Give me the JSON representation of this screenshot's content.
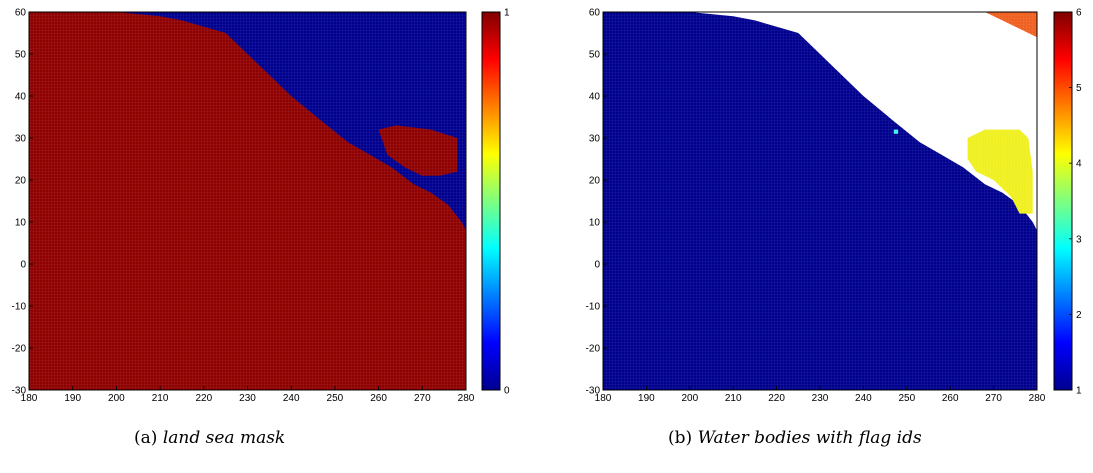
{
  "chart_data": [
    {
      "type": "heatmap",
      "title": "",
      "xlabel": "",
      "ylabel": "",
      "xlim": [
        180,
        280
      ],
      "ylim": [
        -30,
        60
      ],
      "xticks": [
        180,
        190,
        200,
        210,
        220,
        230,
        240,
        250,
        260,
        270,
        280
      ],
      "yticks": [
        -30,
        -20,
        -10,
        0,
        10,
        20,
        30,
        40,
        50,
        60
      ],
      "colorbar": {
        "range": [
          0,
          1
        ],
        "ticks": [
          0,
          1
        ],
        "colormap": "jet"
      },
      "legend_values": {
        "0": "#00008f",
        "1": "#8f0000"
      },
      "data_description": "binary mask; 1 (dark red) over most of the domain, 0 (dark blue) in the north-east quadrant",
      "region_0_boundary": [
        [
          200,
          60
        ],
        [
          210,
          59
        ],
        [
          215,
          58
        ],
        [
          225,
          55
        ],
        [
          230,
          50
        ],
        [
          235,
          45
        ],
        [
          240,
          40
        ],
        [
          247,
          34
        ],
        [
          253,
          29
        ],
        [
          258,
          26
        ],
        [
          263,
          23
        ],
        [
          268,
          19
        ],
        [
          272,
          17
        ],
        [
          276,
          14
        ],
        [
          279,
          10
        ],
        [
          280,
          8
        ],
        [
          280,
          60
        ]
      ],
      "region_1_inset": [
        [
          260,
          32
        ],
        [
          264,
          33
        ],
        [
          272,
          32
        ],
        [
          278,
          30
        ],
        [
          278,
          22
        ],
        [
          274,
          21
        ],
        [
          270,
          21
        ],
        [
          266,
          23
        ],
        [
          262,
          26
        ]
      ],
      "caption_tag": "(a)",
      "caption_text": "land sea mask"
    },
    {
      "type": "heatmap",
      "title": "",
      "xlabel": "",
      "ylabel": "",
      "xlim": [
        180,
        280
      ],
      "ylim": [
        -30,
        60
      ],
      "xticks": [
        180,
        190,
        200,
        210,
        220,
        230,
        240,
        250,
        260,
        270,
        280
      ],
      "yticks": [
        -30,
        -20,
        -10,
        0,
        10,
        20,
        30,
        40,
        50,
        60
      ],
      "colorbar": {
        "range": [
          1,
          6
        ],
        "ticks": [
          1,
          2,
          3,
          4,
          5,
          6
        ],
        "colormap": "jet"
      },
      "legend_values": {
        "1": "#00008f",
        "4": "#f0f020",
        "6": "#f06020"
      },
      "data_description": "flag ids: 1 over ocean (dark blue), land masked (white), 4 over an inland water body (yellow), 6 in the far north-east corner (orange), small cyan cell near (247, 31)",
      "land_boundary": [
        [
          200,
          60
        ],
        [
          210,
          59
        ],
        [
          215,
          58
        ],
        [
          225,
          55
        ],
        [
          230,
          50
        ],
        [
          235,
          45
        ],
        [
          240,
          40
        ],
        [
          247,
          34
        ],
        [
          253,
          29
        ],
        [
          258,
          26
        ],
        [
          263,
          23
        ],
        [
          268,
          19
        ],
        [
          272,
          17
        ],
        [
          276,
          14
        ],
        [
          279,
          10
        ],
        [
          280,
          8
        ],
        [
          280,
          60
        ]
      ],
      "flag4_region": [
        [
          264,
          30
        ],
        [
          268,
          32
        ],
        [
          276,
          32
        ],
        [
          278,
          30
        ],
        [
          279,
          22
        ],
        [
          279,
          12
        ],
        [
          276,
          12
        ],
        [
          274,
          16
        ],
        [
          270,
          20
        ],
        [
          266,
          22
        ],
        [
          264,
          25
        ]
      ],
      "flag6_region": [
        [
          268,
          60
        ],
        [
          280,
          60
        ],
        [
          280,
          54
        ],
        [
          276,
          56
        ],
        [
          272,
          58
        ]
      ],
      "cyan_cell": [
        247,
        31
      ],
      "caption_tag": "(b)",
      "caption_text": "Water bodies with flag ids"
    }
  ]
}
